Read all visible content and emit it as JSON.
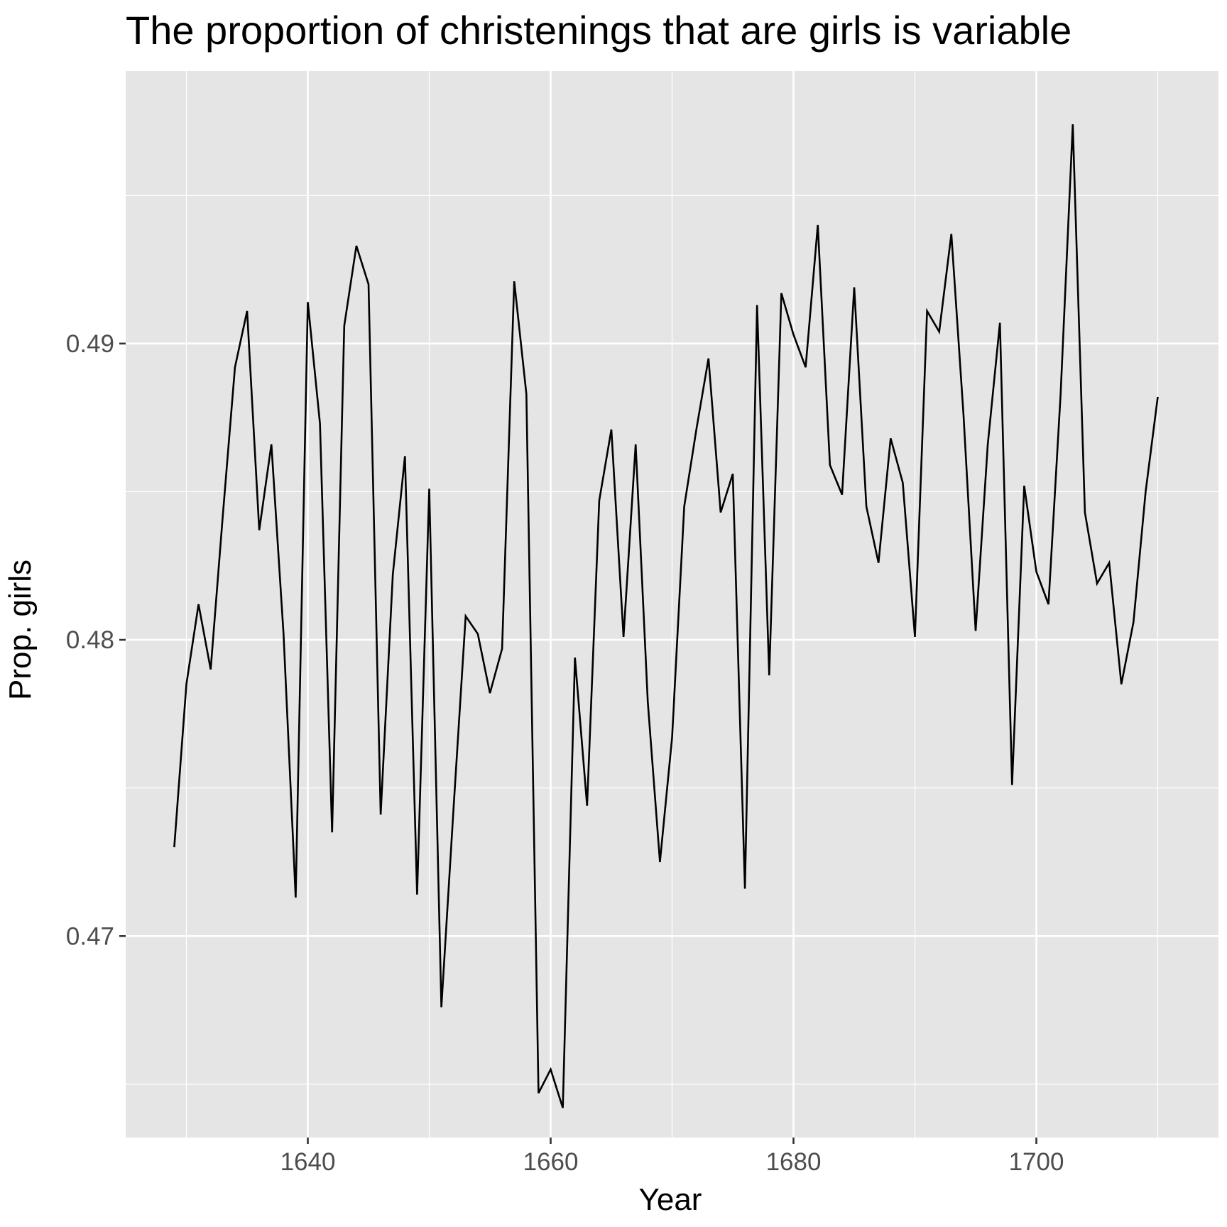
{
  "colors": {
    "panel_background": "#e5e5e5",
    "grid_line": "#ffffff",
    "series_line": "#000000",
    "tick_text": "#4d4d4d",
    "tick_mark": "#333333"
  },
  "chart_data": {
    "type": "line",
    "title": "The proportion of christenings that are girls is variable",
    "xlabel": "Year",
    "ylabel": "Prop. girls",
    "xlim": [
      1625,
      1715
    ],
    "ylim": [
      0.4632,
      0.4992
    ],
    "x_ticks": [
      1640,
      1660,
      1680,
      1700
    ],
    "x_tick_labels": [
      "1640",
      "1660",
      "1680",
      "1700"
    ],
    "x_minor_ticks": [
      1630,
      1650,
      1670,
      1690,
      1710
    ],
    "y_ticks": [
      0.47,
      0.48,
      0.49
    ],
    "y_tick_labels": [
      "0.47",
      "0.48",
      "0.49"
    ],
    "y_minor_ticks": [
      0.465,
      0.475,
      0.485,
      0.495
    ],
    "grid": true,
    "legend": "none",
    "series": [
      {
        "x": [
          1629,
          1630,
          1631,
          1632,
          1633,
          1634,
          1635,
          1636,
          1637,
          1638,
          1639,
          1640,
          1641,
          1642,
          1643,
          1644,
          1645,
          1646,
          1647,
          1648,
          1649,
          1650,
          1651,
          1652,
          1653,
          1654,
          1655,
          1656,
          1657,
          1658,
          1659,
          1660,
          1661,
          1662,
          1663,
          1664,
          1665,
          1666,
          1667,
          1668,
          1669,
          1670,
          1671,
          1672,
          1673,
          1674,
          1675,
          1676,
          1677,
          1678,
          1679,
          1680,
          1681,
          1682,
          1683,
          1684,
          1685,
          1686,
          1687,
          1688,
          1689,
          1690,
          1691,
          1692,
          1693,
          1694,
          1695,
          1696,
          1697,
          1698,
          1699,
          1700,
          1701,
          1702,
          1703,
          1704,
          1705,
          1706,
          1707,
          1708,
          1709,
          1710
        ],
        "values": [
          0.473,
          0.4785,
          0.4812,
          0.479,
          0.4842,
          0.4892,
          0.4911,
          0.4837,
          0.4866,
          0.4802,
          0.4713,
          0.4914,
          0.4873,
          0.4735,
          0.4906,
          0.4933,
          0.492,
          0.4741,
          0.4822,
          0.4862,
          0.4714,
          0.4851,
          0.4676,
          0.4743,
          0.4808,
          0.4802,
          0.4782,
          0.4797,
          0.4921,
          0.4883,
          0.4647,
          0.4655,
          0.4642,
          0.4794,
          0.4744,
          0.4847,
          0.4871,
          0.4801,
          0.4866,
          0.4779,
          0.4725,
          0.4767,
          0.4845,
          0.4871,
          0.4895,
          0.4843,
          0.4856,
          0.4716,
          0.4913,
          0.4788,
          0.4917,
          0.4903,
          0.4892,
          0.494,
          0.4859,
          0.4849,
          0.4919,
          0.4845,
          0.4826,
          0.4868,
          0.4853,
          0.4801,
          0.4911,
          0.4904,
          0.4937,
          0.4876,
          0.4803,
          0.4866,
          0.4907,
          0.4751,
          0.4852,
          0.4823,
          0.4812,
          0.4883,
          0.4974,
          0.4843,
          0.4819,
          0.4826,
          0.4785,
          0.4806,
          0.485,
          0.4882
        ]
      }
    ]
  }
}
